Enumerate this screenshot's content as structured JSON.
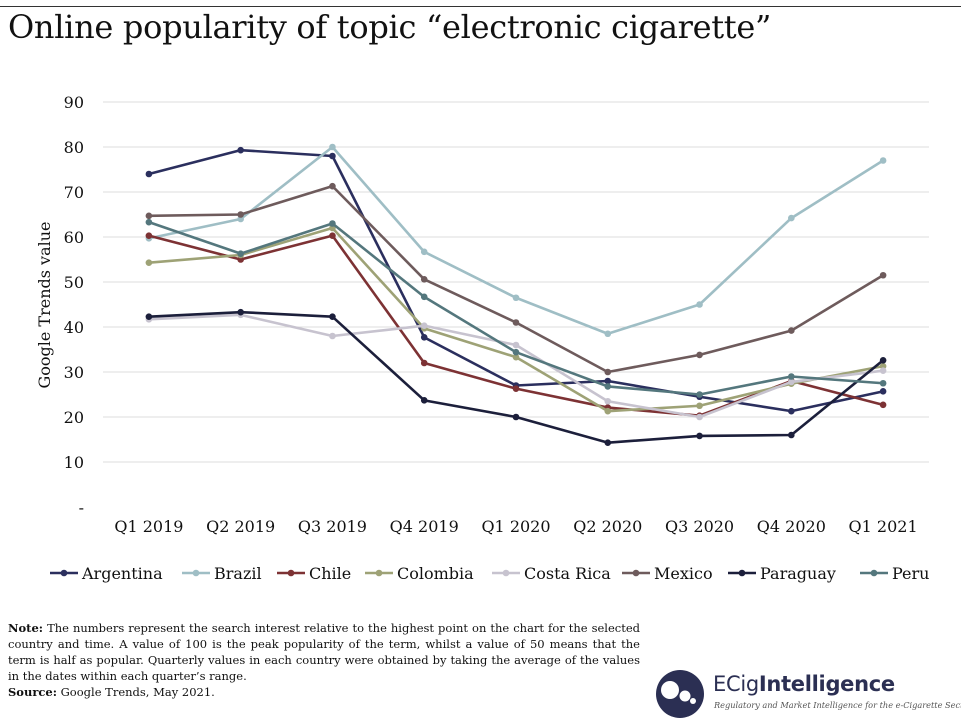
{
  "title": "Online popularity of topic “electronic cigarette”",
  "chart_data": {
    "type": "line",
    "title": "Online popularity of topic “electronic cigarette”",
    "xlabel": "",
    "ylabel": "Google Trends value",
    "ylim": [
      0,
      90
    ],
    "yticks": [
      0,
      10,
      20,
      30,
      40,
      50,
      60,
      70,
      80,
      90
    ],
    "ytick_labels": [
      "-",
      "10",
      "20",
      "30",
      "40",
      "50",
      "60",
      "70",
      "80",
      "90"
    ],
    "grid": true,
    "legend_position": "bottom",
    "categories": [
      "Q1 2019",
      "Q2 2019",
      "Q3 2019",
      "Q4 2019",
      "Q1 2020",
      "Q2 2020",
      "Q3 2020",
      "Q4 2020",
      "Q1 2021"
    ],
    "series": [
      {
        "name": "Argentina",
        "color": "#2b2f5e",
        "values": [
          74,
          79.3,
          78,
          37.7,
          27,
          28,
          24.5,
          21.3,
          25.7
        ]
      },
      {
        "name": "Brazil",
        "color": "#9fbec5",
        "values": [
          59.7,
          64,
          80,
          56.7,
          46.5,
          38.5,
          45,
          64.2,
          77
        ]
      },
      {
        "name": "Chile",
        "color": "#7d3234",
        "values": [
          60.3,
          55,
          60.3,
          32,
          26.3,
          22.1,
          20.3,
          28,
          22.7
        ]
      },
      {
        "name": "Colombia",
        "color": "#9ea276",
        "values": [
          54.3,
          56,
          62,
          39.7,
          33.3,
          21.3,
          22.5,
          27.4,
          31.3
        ]
      },
      {
        "name": "Costa Rica",
        "color": "#c7c3cf",
        "values": [
          41.7,
          42.7,
          38,
          40.3,
          36,
          23.5,
          20,
          27.8,
          30.3
        ]
      },
      {
        "name": "Mexico",
        "color": "#6e5b5c",
        "values": [
          64.7,
          65,
          71.3,
          50.6,
          41,
          30,
          33.8,
          39.2,
          51.5
        ]
      },
      {
        "name": "Paraguay",
        "color": "#1c1f3b",
        "values": [
          42.3,
          43.3,
          42.3,
          23.7,
          20,
          14.3,
          15.8,
          16,
          32.6
        ]
      },
      {
        "name": "Peru",
        "color": "#54777d",
        "values": [
          63.3,
          56.3,
          63,
          46.7,
          34.4,
          26.8,
          25,
          29,
          27.5
        ]
      }
    ]
  },
  "note": {
    "label": "Note:",
    "text": " The numbers represent the search interest relative to the highest point on the chart for the selected country and time. A value of 100 is the peak popularity of the term, whilst a value of 50 means that the term is half as popular. Quarterly values in each country were obtained by taking the average of the values in the dates within each quarter’s range."
  },
  "source": {
    "label": "Source:",
    "text": " Google Trends, May 2021."
  },
  "logo": {
    "name_light": "ECig",
    "name_bold": "Intelligence",
    "tagline": "Regulatory and Market Intelligence for the e-Cigarette Sector",
    "mark_color": "#2b2f53"
  }
}
